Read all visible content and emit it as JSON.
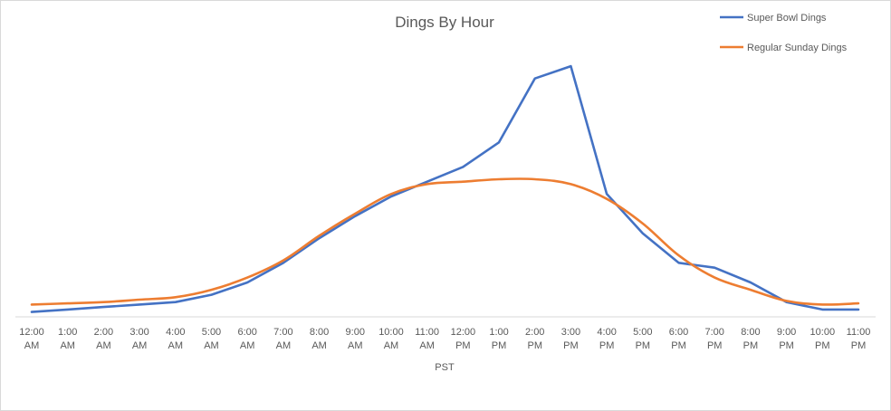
{
  "chart_data": {
    "type": "line",
    "title": "Dings By Hour",
    "xlabel": "PST",
    "ylabel": "",
    "categories": [
      [
        "12:00",
        "AM"
      ],
      [
        "1:00",
        "AM"
      ],
      [
        "2:00",
        "AM"
      ],
      [
        "3:00",
        "AM"
      ],
      [
        "4:00",
        "AM"
      ],
      [
        "5:00",
        "AM"
      ],
      [
        "6:00",
        "AM"
      ],
      [
        "7:00",
        "AM"
      ],
      [
        "8:00",
        "AM"
      ],
      [
        "9:00",
        "AM"
      ],
      [
        "10:00",
        "AM"
      ],
      [
        "11:00",
        "AM"
      ],
      [
        "12:00",
        "PM"
      ],
      [
        "1:00",
        "PM"
      ],
      [
        "2:00",
        "PM"
      ],
      [
        "3:00",
        "PM"
      ],
      [
        "4:00",
        "PM"
      ],
      [
        "5:00",
        "PM"
      ],
      [
        "6:00",
        "PM"
      ],
      [
        "7:00",
        "PM"
      ],
      [
        "8:00",
        "PM"
      ],
      [
        "9:00",
        "PM"
      ],
      [
        "10:00",
        "PM"
      ],
      [
        "11:00",
        "PM"
      ]
    ],
    "series": [
      {
        "name": "Super Bowl Dings",
        "color": "#4472C4",
        "values": [
          2,
          3,
          4,
          5,
          6,
          9,
          14,
          22,
          32,
          41,
          49,
          55,
          61,
          71,
          97,
          102,
          50,
          34,
          22,
          20,
          14,
          6,
          3,
          3
        ]
      },
      {
        "name": "Regular Sunday Dings",
        "color": "#ED7D31",
        "values": [
          5,
          5.5,
          6,
          7,
          8,
          11,
          16,
          23,
          33,
          42,
          50,
          54,
          55,
          56,
          56,
          54,
          48,
          38,
          25,
          16,
          11,
          6.5,
          5,
          5.5
        ]
      }
    ],
    "ylim": [
      0,
      105
    ],
    "legend_position": "top-right",
    "grid": false
  }
}
